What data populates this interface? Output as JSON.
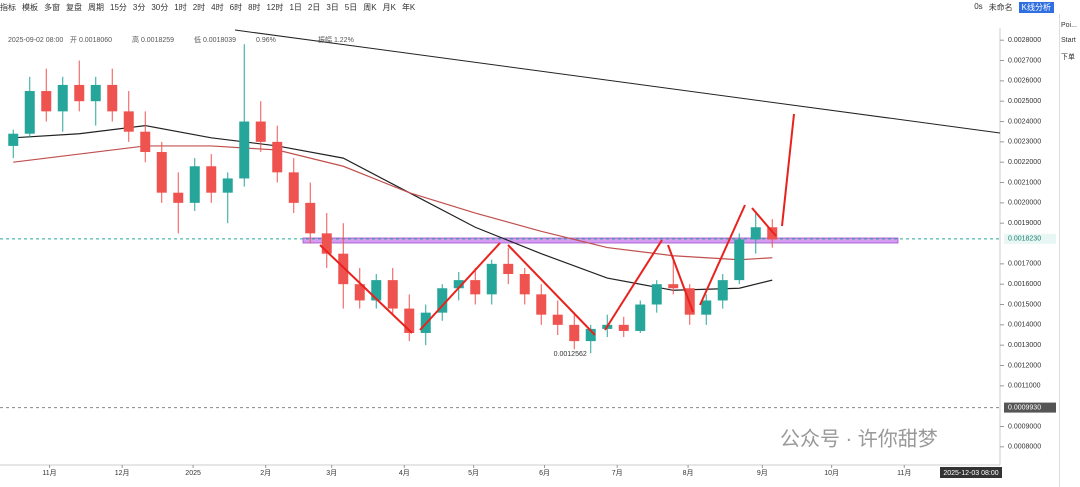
{
  "toolbar": {
    "left": [
      "指标",
      "模板",
      "多窗",
      "复盘",
      "周期",
      "15分",
      "3分",
      "30分",
      "1时",
      "2时",
      "4时",
      "6时",
      "8时",
      "12时",
      "1日",
      "2日",
      "3日",
      "5日",
      "周K",
      "月K",
      "年K"
    ],
    "right": [
      "0s",
      "未命名",
      "K线分析"
    ]
  },
  "sidebar": [
    "Poi...",
    "Start",
    "下单"
  ],
  "watermark": "公众号 · 许你甜梦",
  "chart_data": {
    "type": "candlestick",
    "info": [
      "2025-09-02 08:00",
      "开 0.0018060",
      "高 0.0018259",
      "低 0.0018039",
      "0.96%",
      "振幅 1.22%"
    ],
    "open": [
      0.00228,
      0.00234,
      0.00255,
      0.00245,
      0.00258,
      0.0025,
      0.00258,
      0.00245,
      0.00235,
      0.00225,
      0.00205,
      0.002,
      0.00218,
      0.00205,
      0.00212,
      0.0024,
      0.0023,
      0.00215,
      0.002,
      0.00185,
      0.00175,
      0.0016,
      0.00152,
      0.00162,
      0.00148,
      0.00136,
      0.00146,
      0.00158,
      0.00162,
      0.00155,
      0.0017,
      0.00165,
      0.00155,
      0.00145,
      0.0014,
      0.00132,
      0.00138,
      0.0014,
      0.00137,
      0.0015,
      0.0016,
      0.00158,
      0.00145,
      0.00152,
      0.00162,
      0.00182,
      0.00188
    ],
    "high": [
      0.00236,
      0.00262,
      0.00266,
      0.00262,
      0.0027,
      0.00262,
      0.00266,
      0.00255,
      0.00245,
      0.0023,
      0.00215,
      0.00222,
      0.00224,
      0.00215,
      0.00278,
      0.0025,
      0.00238,
      0.00222,
      0.0021,
      0.00195,
      0.0019,
      0.00168,
      0.00165,
      0.00168,
      0.00155,
      0.0015,
      0.0016,
      0.00166,
      0.00168,
      0.00172,
      0.00178,
      0.00168,
      0.0016,
      0.00152,
      0.00146,
      0.0014,
      0.00145,
      0.00144,
      0.00152,
      0.00162,
      0.00174,
      0.0016,
      0.00155,
      0.00165,
      0.00185,
      0.00196,
      0.00192
    ],
    "low": [
      0.00222,
      0.00232,
      0.0024,
      0.00235,
      0.00245,
      0.00238,
      0.0024,
      0.0023,
      0.0022,
      0.002,
      0.00185,
      0.00196,
      0.002,
      0.0019,
      0.00208,
      0.00225,
      0.0021,
      0.00195,
      0.0018,
      0.00168,
      0.00148,
      0.00148,
      0.00148,
      0.00145,
      0.00132,
      0.0013,
      0.00142,
      0.00152,
      0.0015,
      0.0015,
      0.0016,
      0.0015,
      0.0014,
      0.00135,
      0.00128,
      0.00126,
      0.00134,
      0.00134,
      0.00136,
      0.00146,
      0.00155,
      0.0014,
      0.0014,
      0.00148,
      0.0016,
      0.00175,
      0.00178
    ],
    "close": [
      0.00234,
      0.00255,
      0.00245,
      0.00258,
      0.0025,
      0.00258,
      0.00245,
      0.00235,
      0.00225,
      0.00205,
      0.002,
      0.00218,
      0.00205,
      0.00212,
      0.0024,
      0.0023,
      0.00215,
      0.002,
      0.00185,
      0.00175,
      0.0016,
      0.00152,
      0.00162,
      0.00148,
      0.00136,
      0.00146,
      0.00158,
      0.00162,
      0.00155,
      0.0017,
      0.00165,
      0.00155,
      0.00145,
      0.0014,
      0.00132,
      0.00138,
      0.0014,
      0.00137,
      0.0015,
      0.0016,
      0.00158,
      0.00145,
      0.00152,
      0.00162,
      0.00182,
      0.00188,
      0.00182
    ],
    "up_color": "#26a69a",
    "down_color": "#ef5350",
    "series": [
      {
        "color": "#222222",
        "x": [
          0,
          4,
          8,
          12,
          16,
          20,
          24,
          28,
          32,
          36,
          40,
          44,
          46
        ],
        "values": [
          0.00232,
          0.00234,
          0.00238,
          0.00232,
          0.00228,
          0.00222,
          0.00205,
          0.00188,
          0.00175,
          0.00163,
          0.00157,
          0.00158,
          0.00162
        ]
      },
      {
        "color": "#c0504d",
        "x": [
          0,
          4,
          8,
          12,
          16,
          20,
          24,
          28,
          32,
          36,
          40,
          44,
          46
        ],
        "values": [
          0.0022,
          0.00224,
          0.00228,
          0.00228,
          0.00226,
          0.00218,
          0.00205,
          0.00195,
          0.00186,
          0.00178,
          0.00174,
          0.00172,
          0.00173
        ]
      }
    ],
    "xlim": [
      0,
      60
    ],
    "xticks": [
      {
        "value": 2.7,
        "label": "11月"
      },
      {
        "value": 7.1,
        "label": "12月"
      },
      {
        "value": 11.4,
        "label": "2025"
      },
      {
        "value": 15.8,
        "label": "2月"
      },
      {
        "value": 19.8,
        "label": "3月"
      },
      {
        "value": 24.2,
        "label": "4月"
      },
      {
        "value": 28.4,
        "label": "5月"
      },
      {
        "value": 32.7,
        "label": "6月"
      },
      {
        "value": 37.1,
        "label": "7月"
      },
      {
        "value": 41.4,
        "label": "8月"
      },
      {
        "value": 45.9,
        "label": "9月"
      },
      {
        "value": 50.1,
        "label": "10月"
      },
      {
        "value": 54.5,
        "label": "11月"
      }
    ],
    "ylim": [
      0.00075,
      0.00286
    ],
    "yticks": [
      {
        "value": 0.0008,
        "label": "0.0008000"
      },
      {
        "value": 0.0009,
        "label": "0.0009000"
      },
      {
        "value": 0.0011,
        "label": "0.0011000"
      },
      {
        "value": 0.0012,
        "label": "0.0012000"
      },
      {
        "value": 0.0013,
        "label": "0.0013000"
      },
      {
        "value": 0.0014,
        "label": "0.0014000"
      },
      {
        "value": 0.0015,
        "label": "0.0015000"
      },
      {
        "value": 0.0016,
        "label": "0.0016000"
      },
      {
        "value": 0.0017,
        "label": "0.0017000"
      },
      {
        "value": 0.0019,
        "label": "0.0019000"
      },
      {
        "value": 0.002,
        "label": "0.0020000"
      },
      {
        "value": 0.0021,
        "label": "0.0021000"
      },
      {
        "value": 0.0022,
        "label": "0.0022000"
      },
      {
        "value": 0.0023,
        "label": "0.0023000"
      },
      {
        "value": 0.0024,
        "label": "0.0024000"
      },
      {
        "value": 0.0025,
        "label": "0.0025000"
      },
      {
        "value": 0.0026,
        "label": "0.0026000"
      },
      {
        "value": 0.0027,
        "label": "0.0027000"
      },
      {
        "value": 0.0028,
        "label": "0.0028000"
      }
    ],
    "price_lines": [
      {
        "value": 0.001823,
        "label": "0.0018230",
        "color": "#26a69a"
      },
      {
        "value": 0.000993,
        "label": "0.0009930",
        "color": "#888888"
      }
    ],
    "low_annotation": {
      "value": 0.0012562,
      "label": "0.0012562"
    },
    "cursor_time": "2025-12-03 08:00"
  }
}
